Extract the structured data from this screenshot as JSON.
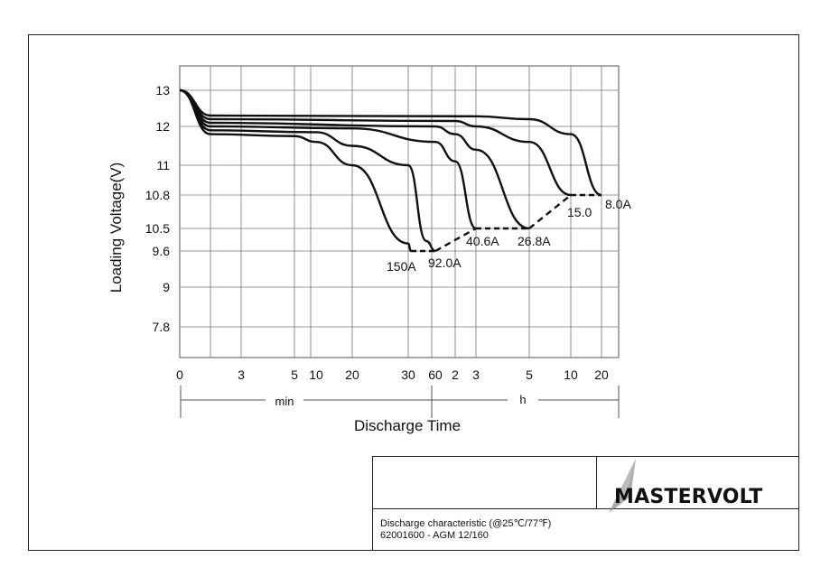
{
  "chart_data": {
    "type": "line",
    "title": "",
    "xlabel": "Discharge Time",
    "ylabel": "Loading  Voltage(V)",
    "y_ticks": [
      "13",
      "12",
      "11",
      "10.8",
      "10.5",
      "9.6",
      "9",
      "7.8"
    ],
    "x_ticks": [
      "0",
      "3",
      "5",
      "10",
      "20",
      "30",
      "60",
      "2",
      "3",
      "5",
      "10",
      "20"
    ],
    "x_unit_min": "min",
    "x_unit_h": "h",
    "grid": true,
    "series": [
      {
        "name": "150A",
        "points": [
          [
            "0min",
            13.0
          ],
          [
            "1min",
            11.8
          ],
          [
            "5min",
            11.75
          ],
          [
            "10min",
            11.6
          ],
          [
            "20min",
            11.0
          ],
          [
            "30min",
            9.9
          ],
          [
            "33min",
            9.6
          ]
        ]
      },
      {
        "name": "92.0A",
        "points": [
          [
            "0min",
            13.0
          ],
          [
            "1min",
            11.9
          ],
          [
            "10min",
            11.85
          ],
          [
            "20min",
            11.5
          ],
          [
            "30min",
            11.0
          ],
          [
            "50min",
            10.0
          ],
          [
            "60min",
            9.6
          ]
        ]
      },
      {
        "name": "40.6A",
        "points": [
          [
            "0min",
            13.0
          ],
          [
            "1min",
            12.0
          ],
          [
            "20min",
            11.95
          ],
          [
            "60min",
            11.6
          ],
          [
            "2h",
            11.1
          ],
          [
            "3h",
            10.5
          ]
        ]
      },
      {
        "name": "26.8A",
        "points": [
          [
            "0min",
            13.0
          ],
          [
            "1min",
            12.1
          ],
          [
            "60min",
            12.0
          ],
          [
            "2h",
            11.8
          ],
          [
            "3h",
            11.4
          ],
          [
            "5h",
            10.5
          ]
        ]
      },
      {
        "name": "15.0",
        "points": [
          [
            "0min",
            13.0
          ],
          [
            "1min",
            12.2
          ],
          [
            "2h",
            12.15
          ],
          [
            "3h",
            12.0
          ],
          [
            "5h",
            11.6
          ],
          [
            "10h",
            10.8
          ]
        ]
      },
      {
        "name": "8.0A",
        "points": [
          [
            "0min",
            13.0
          ],
          [
            "1min",
            12.3
          ],
          [
            "3h",
            12.28
          ],
          [
            "5h",
            12.2
          ],
          [
            "10h",
            11.8
          ],
          [
            "20h",
            10.8
          ]
        ]
      }
    ],
    "end_voltage_curve": [
      [
        "33min",
        9.6
      ],
      [
        "60min",
        9.6
      ],
      [
        "3h",
        10.5
      ],
      [
        "5h",
        10.5
      ],
      [
        "10h",
        10.8
      ],
      [
        "20h",
        10.8
      ]
    ]
  },
  "title_block": {
    "caption_line1": "Discharge characteristic (@25℃/77℉)",
    "caption_line2": "62001600 - AGM 12/160",
    "brand": "MASTERVOLT"
  }
}
